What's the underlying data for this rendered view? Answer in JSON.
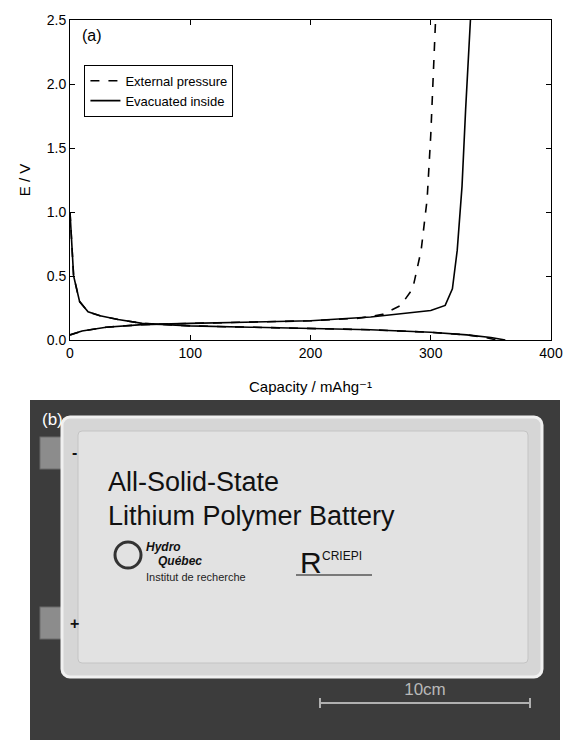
{
  "chart_data": {
    "type": "line",
    "panel_label": "(a)",
    "x_label": "Capacity / mAhg⁻¹",
    "y_label": "E / V",
    "xlim": [
      0,
      400
    ],
    "xticks": [
      0,
      100,
      200,
      300,
      400
    ],
    "ylim": [
      0,
      2.5
    ],
    "yticks": [
      {
        "value": 0,
        "label": "0.0"
      },
      0.5,
      {
        "value": 1,
        "label": "1.0"
      },
      1.5,
      {
        "value": 2,
        "label": "2.0"
      },
      2.5
    ],
    "grid": false,
    "legend": "upper left",
    "series": [
      {
        "name": "External pressure",
        "color": "#000000",
        "line_style": "dash",
        "x": [
          0,
          3,
          8,
          15,
          25,
          40,
          60,
          100,
          150,
          200,
          250,
          300,
          330,
          345,
          355,
          null,
          0,
          10,
          30,
          60,
          100,
          150,
          200,
          240,
          260,
          275,
          285,
          292,
          297,
          300,
          302,
          304
        ],
        "values": [
          1.0,
          0.5,
          0.3,
          0.22,
          0.19,
          0.16,
          0.13,
          0.11,
          0.1,
          0.09,
          0.08,
          0.06,
          0.04,
          0.02,
          0.0,
          null,
          0.04,
          0.07,
          0.1,
          0.12,
          0.13,
          0.14,
          0.15,
          0.17,
          0.2,
          0.27,
          0.4,
          0.7,
          1.1,
          1.6,
          2.1,
          2.5
        ]
      },
      {
        "name": "Evacuated inside",
        "color": "#000000",
        "line_style": "solid",
        "x": [
          0,
          3,
          8,
          15,
          25,
          40,
          60,
          100,
          150,
          200,
          250,
          300,
          330,
          350,
          362,
          null,
          0,
          10,
          30,
          60,
          100,
          150,
          200,
          250,
          280,
          300,
          312,
          318,
          322,
          326,
          329,
          331,
          333
        ],
        "values": [
          1.0,
          0.5,
          0.3,
          0.22,
          0.19,
          0.16,
          0.13,
          0.11,
          0.1,
          0.09,
          0.08,
          0.06,
          0.04,
          0.02,
          0.0,
          null,
          0.04,
          0.07,
          0.1,
          0.12,
          0.13,
          0.14,
          0.15,
          0.18,
          0.21,
          0.23,
          0.27,
          0.4,
          0.7,
          1.2,
          1.8,
          2.2,
          2.5
        ]
      }
    ]
  },
  "panel_b": {
    "panel_label": "(b)",
    "tabs": {
      "negative": "-",
      "positive": "+"
    },
    "title_lines": [
      "All-Solid-State",
      "Lithium Polymer Battery"
    ],
    "logo_left": {
      "name_lines": [
        "Hydro",
        "Québec"
      ],
      "subtitle": "Institut de recherche"
    },
    "logo_right": {
      "mark": "R",
      "name": "CRIEPI"
    },
    "scale_bar": "10cm"
  }
}
